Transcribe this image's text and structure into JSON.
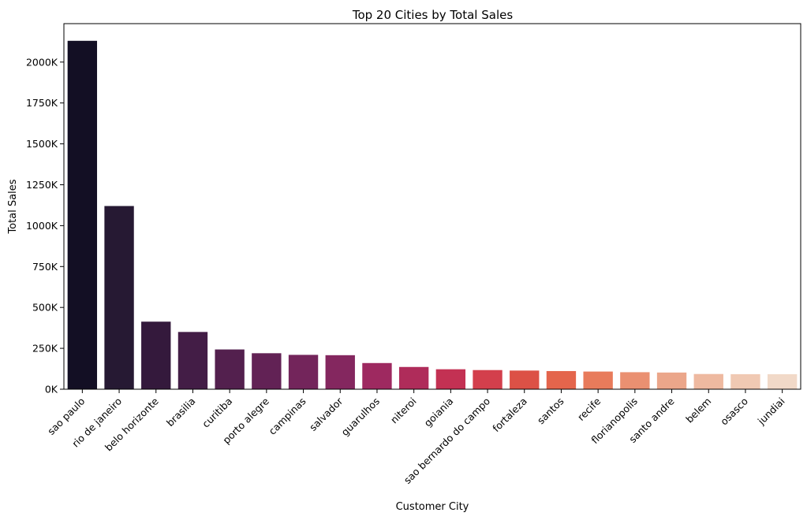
{
  "chart_data": {
    "type": "bar",
    "title": "Top 20 Cities by Total Sales",
    "xlabel": "Customer City",
    "ylabel": "Total Sales",
    "categories": [
      "sao paulo",
      "rio de janeiro",
      "belo horizonte",
      "brasilia",
      "curitiba",
      "porto alegre",
      "campinas",
      "salvador",
      "guarulhos",
      "niteroi",
      "goiania",
      "sao bernardo do campo",
      "fortaleza",
      "santos",
      "recife",
      "florianopolis",
      "santo andre",
      "belem",
      "osasco",
      "jundiai"
    ],
    "values": [
      2130000,
      1120000,
      413000,
      350000,
      243000,
      220000,
      210000,
      208000,
      160000,
      136000,
      122000,
      117000,
      114000,
      111000,
      108000,
      104000,
      102000,
      93000,
      92000,
      92000
    ],
    "ylim": [
      0,
      2235000
    ],
    "yticks": [
      0,
      250000,
      500000,
      750000,
      1000000,
      1250000,
      1500000,
      1750000,
      2000000
    ],
    "ytick_labels": [
      "0K",
      "250K",
      "500K",
      "750K",
      "1000K",
      "1250K",
      "1500K",
      "1750K",
      "2000K"
    ],
    "colors": [
      "#130f24",
      "#261933",
      "#34193c",
      "#431d46",
      "#53204e",
      "#622255",
      "#73255b",
      "#84275f",
      "#9e2960",
      "#af2c5a",
      "#c33153",
      "#d33f4c",
      "#dc5146",
      "#e4654c",
      "#e87b5b",
      "#ea9071",
      "#eba68a",
      "#eeb9a0",
      "#f0c9b3",
      "#f1d9c8"
    ],
    "grid": false,
    "legend": "none"
  }
}
